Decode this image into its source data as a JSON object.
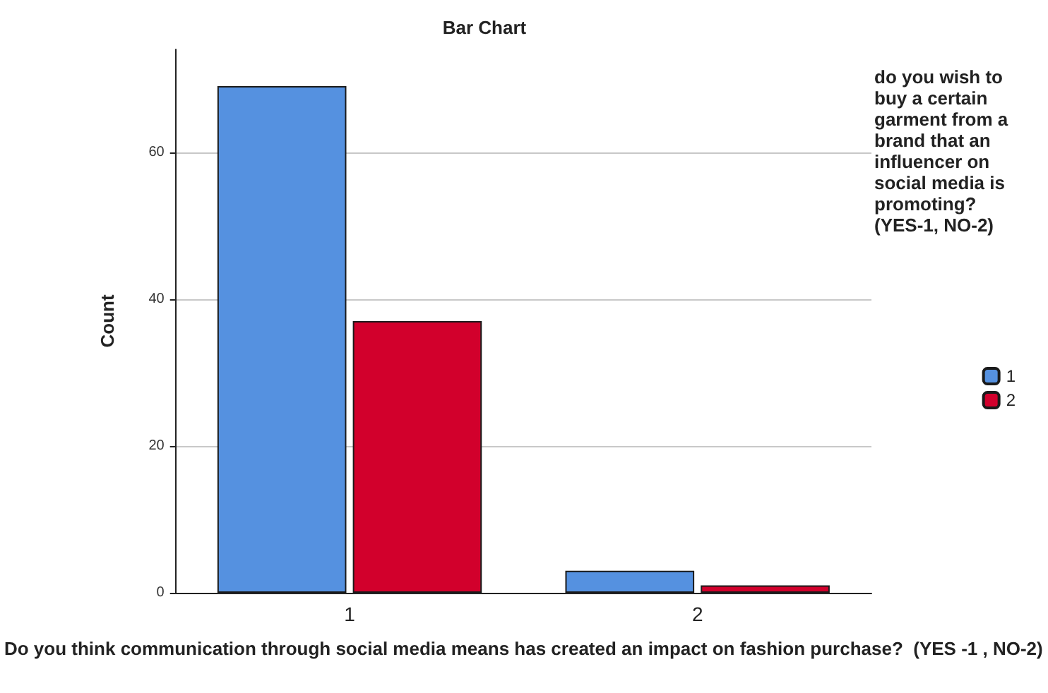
{
  "chart_data": {
    "type": "bar",
    "title": "Bar Chart",
    "xlabel": "Do you think communication through social media means has created an impact on fashion purchase?  (YES -1 , NO-2)",
    "ylabel": "Count",
    "legend_title": "do you wish to buy a certain garment from a brand that an influencer on social media is promoting? (YES-1, NO-2)",
    "categories": [
      "1",
      "2"
    ],
    "series": [
      {
        "name": "1",
        "color": "#5591e0",
        "values": [
          69,
          3
        ]
      },
      {
        "name": "2",
        "color": "#d2002c",
        "values": [
          37,
          1
        ]
      }
    ],
    "ylim": [
      0,
      74
    ],
    "yticks": [
      0,
      20,
      40,
      60
    ],
    "grid": "y",
    "legend": "right"
  }
}
